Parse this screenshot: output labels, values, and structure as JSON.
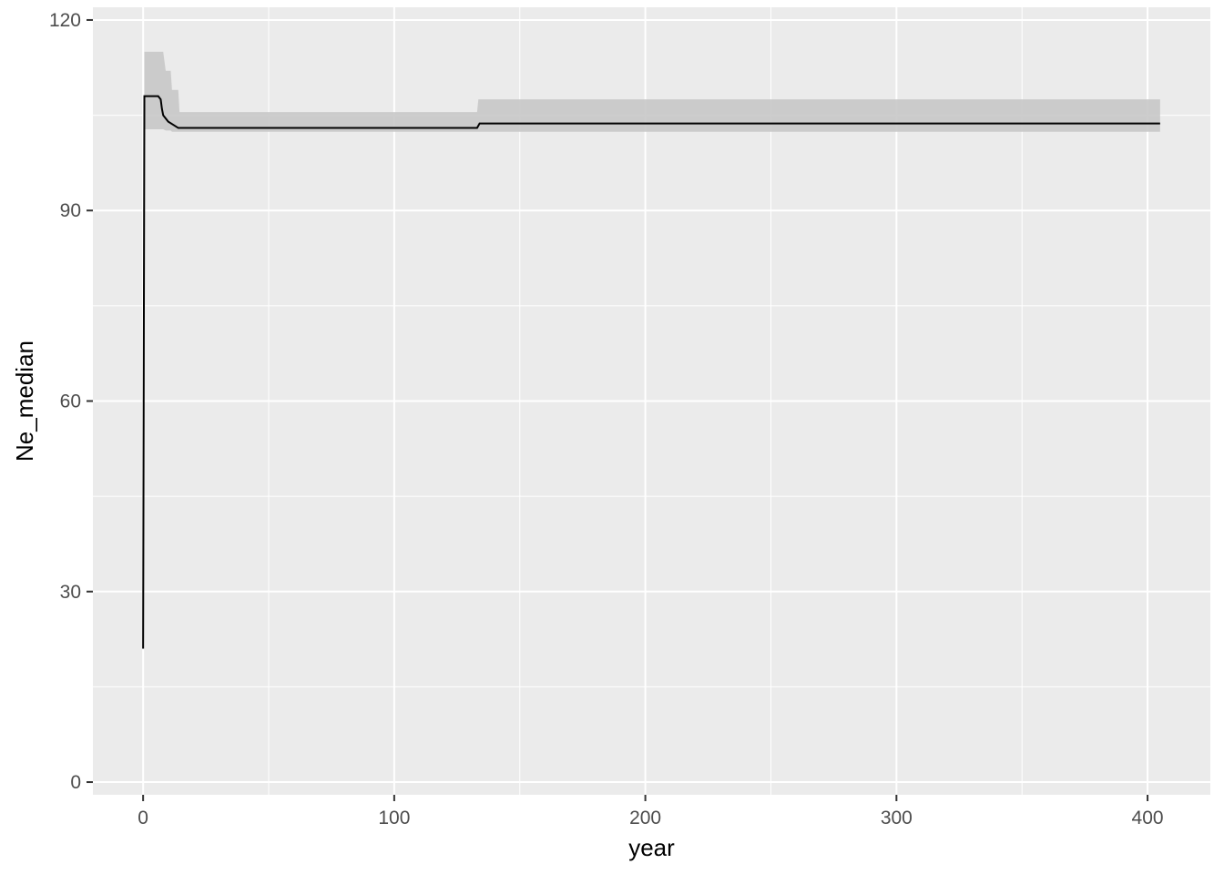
{
  "chart_data": {
    "type": "area",
    "title": "",
    "xlabel": "year",
    "ylabel": "Ne_median",
    "xlim": [
      -20,
      425
    ],
    "ylim": [
      -2,
      122
    ],
    "x_ticks": [
      0,
      100,
      200,
      300,
      400
    ],
    "y_ticks": [
      0,
      30,
      60,
      90,
      120
    ],
    "x_tick_labels": [
      "0",
      "100",
      "200",
      "300",
      "400"
    ],
    "y_tick_labels": [
      "0",
      "30",
      "60",
      "90",
      "120"
    ],
    "grid": true,
    "legend": "none",
    "series": [
      {
        "kind": "step-line",
        "color": "#000000",
        "x": [
          0,
          0.5,
          6,
          7,
          7.5,
          8,
          9,
          10,
          12,
          14,
          20,
          133,
          134,
          405
        ],
        "y": [
          21,
          108,
          108,
          107.5,
          106,
          105,
          104.5,
          104,
          103.5,
          103,
          103,
          103,
          103.7,
          103.7
        ]
      },
      {
        "kind": "ribbon",
        "color": "#c8c8c8",
        "x": [
          0.5,
          8,
          9,
          11,
          11.5,
          14,
          14.5,
          133,
          133.5,
          405
        ],
        "upper": [
          115,
          115,
          112,
          112,
          109,
          109,
          105.5,
          105.5,
          107.5,
          107.5
        ],
        "lower": [
          102.8,
          102.8,
          102.6,
          102.6,
          102.4,
          102.4,
          102.4,
          102.4,
          102.4,
          102.4
        ]
      }
    ]
  }
}
